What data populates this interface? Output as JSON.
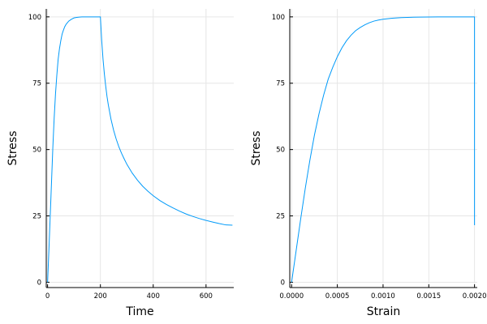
{
  "chart_data": [
    {
      "type": "line",
      "xlabel": "Time",
      "ylabel": "Stress",
      "xlim": [
        -5,
        705
      ],
      "ylim": [
        -2,
        103
      ],
      "xticks": [
        0,
        200,
        400,
        600
      ],
      "xtick_labels": [
        "0",
        "200",
        "400",
        "600"
      ],
      "yticks": [
        0,
        25,
        50,
        75,
        100
      ],
      "ytick_labels": [
        "0",
        "25",
        "50",
        "75",
        "100"
      ],
      "grid": true,
      "series": [
        {
          "color": "#009af9",
          "x": [
            0,
            5,
            10,
            15,
            20,
            25,
            30,
            35,
            40,
            45,
            50,
            55,
            60,
            65,
            70,
            80,
            90,
            100,
            110,
            120,
            130,
            140,
            150,
            160,
            170,
            180,
            190,
            200,
            205,
            210,
            215,
            220,
            225,
            230,
            240,
            250,
            260,
            270,
            280,
            290,
            300,
            320,
            340,
            360,
            380,
            400,
            425,
            450,
            475,
            500,
            525,
            550,
            575,
            600,
            625,
            650,
            675,
            700
          ],
          "y": [
            0,
            12,
            25,
            38,
            51,
            62,
            71,
            78,
            84,
            88,
            91,
            93.5,
            95,
            96.3,
            97.2,
            98.4,
            99.1,
            99.6,
            99.8,
            99.9,
            100,
            100,
            100,
            100,
            100,
            100,
            100,
            100,
            91,
            84,
            78.5,
            74,
            70,
            66.8,
            61.5,
            57.3,
            53.9,
            51,
            48.6,
            46.5,
            44.5,
            41.2,
            38.5,
            36.2,
            34.3,
            32.6,
            30.8,
            29.3,
            28,
            26.8,
            25.7,
            24.8,
            24,
            23.3,
            22.7,
            22.1,
            21.6,
            21.5
          ]
        }
      ]
    },
    {
      "type": "line",
      "xlabel": "Strain",
      "ylabel": "Stress",
      "xlim": [
        -2e-05,
        0.00203
      ],
      "ylim": [
        -2,
        103
      ],
      "xticks": [
        0,
        0.0005,
        0.001,
        0.0015,
        0.002
      ],
      "xtick_labels": [
        "0.0000",
        "0.0005",
        "0.0010",
        "0.0015",
        "0.0020"
      ],
      "yticks": [
        0,
        25,
        50,
        75,
        100
      ],
      "ytick_labels": [
        "0",
        "25",
        "50",
        "75",
        "100"
      ],
      "grid": true,
      "series": [
        {
          "color": "#009af9",
          "x": [
            0,
            5e-05,
            0.0001,
            0.00015,
            0.0002,
            0.00025,
            0.0003,
            0.00035,
            0.0004,
            0.00045,
            0.0005,
            0.00055,
            0.0006,
            0.00065,
            0.0007,
            0.00075,
            0.0008,
            0.00085,
            0.0009,
            0.00095,
            0.001,
            0.0011,
            0.0012,
            0.0013,
            0.0014,
            0.0015,
            0.0016,
            0.0017,
            0.0018,
            0.0019,
            0.002,
            0.002
          ],
          "y": [
            0,
            12,
            24,
            35.5,
            46,
            55.5,
            63.5,
            70.5,
            76.5,
            81,
            85,
            88.3,
            91,
            93.1,
            94.8,
            96,
            97,
            97.8,
            98.4,
            98.8,
            99.1,
            99.5,
            99.7,
            99.85,
            99.9,
            99.95,
            100,
            100,
            100,
            100,
            100,
            21.5
          ]
        }
      ]
    }
  ]
}
